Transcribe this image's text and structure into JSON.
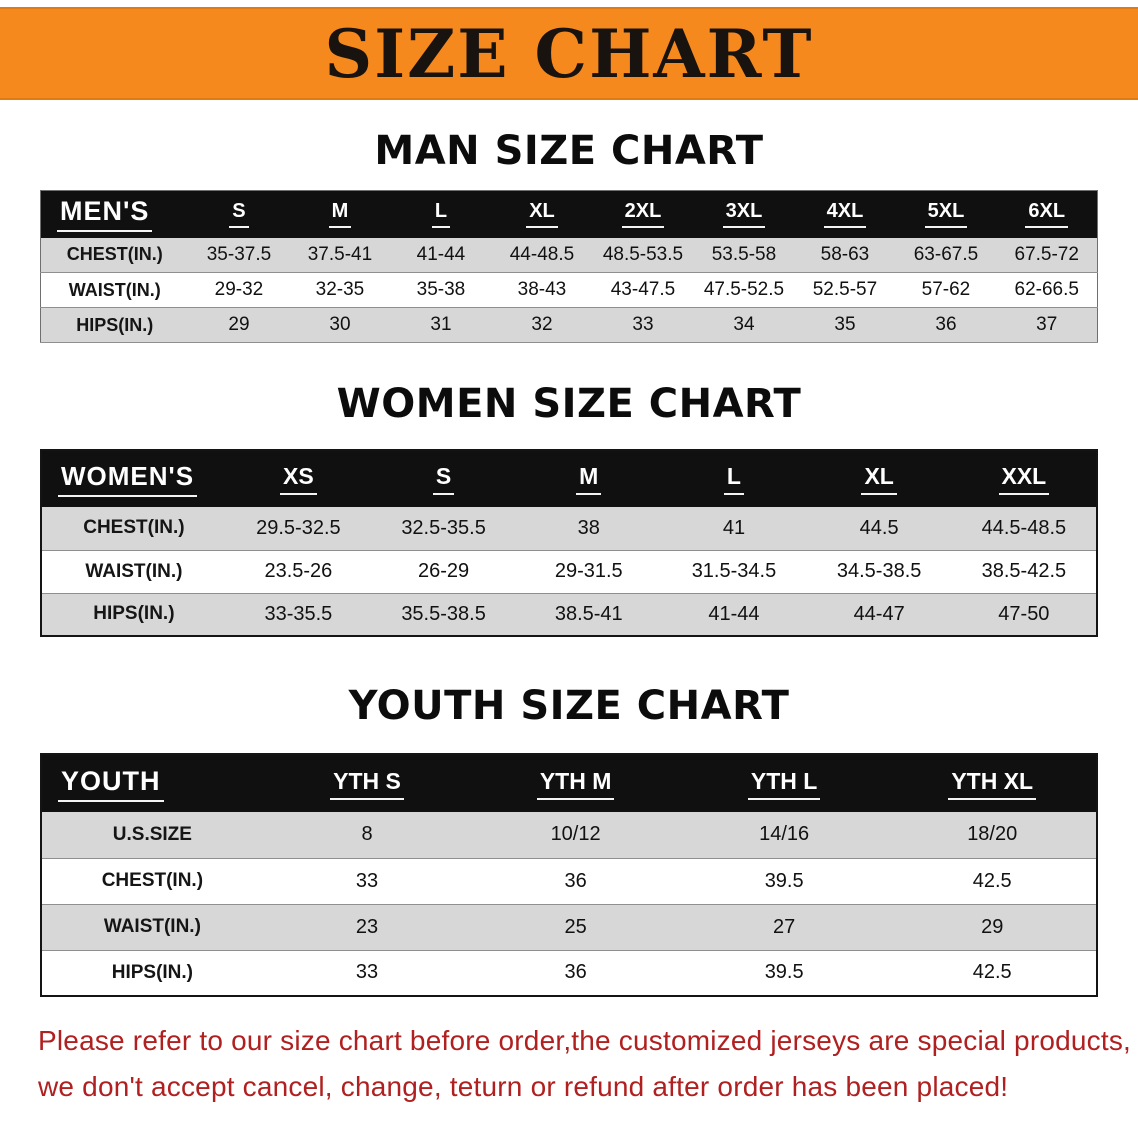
{
  "banner": {
    "title": "SIZE CHART"
  },
  "sections": [
    {
      "id": "men",
      "heading": "MAN SIZE CHART",
      "table": {
        "title": "MEN'S",
        "columns": [
          "S",
          "M",
          "L",
          "XL",
          "2XL",
          "3XL",
          "4XL",
          "5XL",
          "6XL"
        ],
        "rows": [
          {
            "label": "CHEST(IN.)",
            "values": [
              "35-37.5",
              "37.5-41",
              "41-44",
              "44-48.5",
              "48.5-53.5",
              "53.5-58",
              "58-63",
              "63-67.5",
              "67.5-72"
            ]
          },
          {
            "label": "WAIST(IN.)",
            "values": [
              "29-32",
              "32-35",
              "35-38",
              "38-43",
              "43-47.5",
              "47.5-52.5",
              "52.5-57",
              "57-62",
              "62-66.5"
            ]
          },
          {
            "label": "HIPS(IN.)",
            "values": [
              "29",
              "30",
              "31",
              "32",
              "33",
              "34",
              "35",
              "36",
              "37"
            ]
          }
        ]
      }
    },
    {
      "id": "women",
      "heading": "WOMEN SIZE CHART",
      "table": {
        "title": "WOMEN'S",
        "columns": [
          "XS",
          "S",
          "M",
          "L",
          "XL",
          "XXL"
        ],
        "rows": [
          {
            "label": "CHEST(IN.)",
            "values": [
              "29.5-32.5",
              "32.5-35.5",
              "38",
              "41",
              "44.5",
              "44.5-48.5"
            ]
          },
          {
            "label": "WAIST(IN.)",
            "values": [
              "23.5-26",
              "26-29",
              "29-31.5",
              "31.5-34.5",
              "34.5-38.5",
              "38.5-42.5"
            ]
          },
          {
            "label": "HIPS(IN.)",
            "values": [
              "33-35.5",
              "35.5-38.5",
              "38.5-41",
              "41-44",
              "44-47",
              "47-50"
            ]
          }
        ]
      }
    },
    {
      "id": "youth",
      "heading": "YOUTH SIZE CHART",
      "table": {
        "title": "YOUTH",
        "columns": [
          "YTH S",
          "YTH M",
          "YTH L",
          "YTH XL"
        ],
        "rows": [
          {
            "label": "U.S.SIZE",
            "values": [
              "8",
              "10/12",
              "14/16",
              "18/20"
            ]
          },
          {
            "label": "CHEST(IN.)",
            "values": [
              "33",
              "36",
              "39.5",
              "42.5"
            ]
          },
          {
            "label": "WAIST(IN.)",
            "values": [
              "23",
              "25",
              "27",
              "29"
            ]
          },
          {
            "label": "HIPS(IN.)",
            "values": [
              "33",
              "36",
              "39.5",
              "42.5"
            ]
          }
        ]
      }
    }
  ],
  "disclaimer": {
    "line1": "Please refer to our size chart before order,the customized jerseys are special products,",
    "line2": "we don't accept cancel, change, teturn or refund after order has been placed!"
  },
  "colors": {
    "banner_orange": "#f6891e",
    "header_black": "#101010",
    "stripe_gray": "#d7d7d7",
    "disclaimer_red": "#b02020"
  }
}
